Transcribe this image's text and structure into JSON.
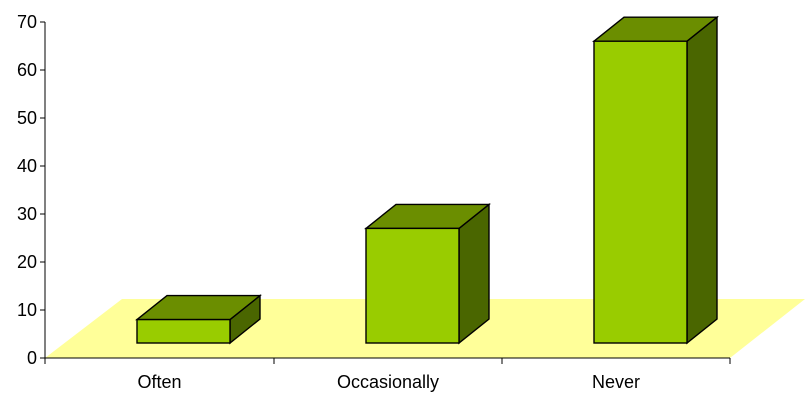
{
  "chart_data": {
    "type": "bar",
    "style": "3d-column",
    "categories": [
      "Often",
      "Occasionally",
      "Never"
    ],
    "values": [
      8,
      27,
      66
    ],
    "ylim": [
      0,
      70
    ],
    "yticks": [
      "0",
      "10",
      "20",
      "30",
      "40",
      "50",
      "60",
      "70"
    ],
    "grid": false,
    "legend": "none",
    "colors": {
      "bar_front": "#99cc00",
      "bar_top": "#6b8e00",
      "bar_side": "#4a6600",
      "floor": "#ffff99"
    }
  }
}
